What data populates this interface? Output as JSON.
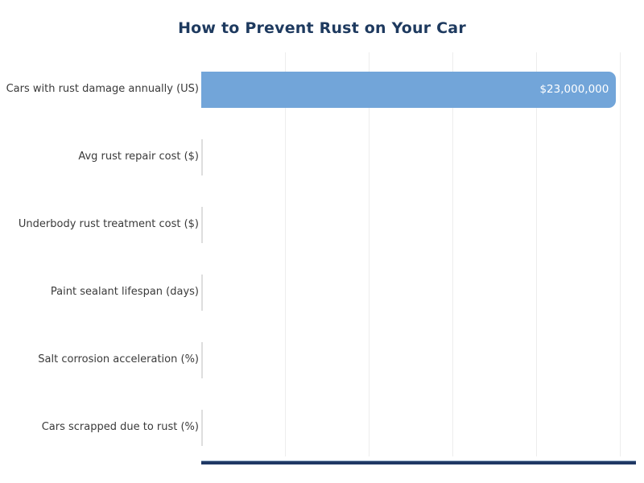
{
  "title": "How to Prevent Rust on Your Car",
  "chart_data": {
    "type": "bar",
    "orientation": "horizontal",
    "title": "How to Prevent Rust on Your Car",
    "xlabel": "",
    "ylabel": "",
    "categories": [
      "Cars with rust damage annually (US)",
      "Avg rust repair cost ($)",
      "Underbody rust treatment cost ($)",
      "Paint sealant lifespan (days)",
      "Salt corrosion acceleration (%)",
      "Cars scrapped due to rust (%)"
    ],
    "values": [
      23000000,
      null,
      null,
      null,
      null,
      null
    ],
    "value_labels": [
      "$23,000,000",
      null,
      null,
      null,
      null,
      null
    ],
    "xlim": [
      0,
      24100000
    ],
    "grid": "vertical gridlines only, 5 lines, no tick labels",
    "legend": "none",
    "note": "Only the first bar is visibly rendered; remaining bars appear as sub-pixel slivers at the axis"
  },
  "colors": {
    "background": "#ffffff",
    "bar_fill": "#72a5d9",
    "tiny_bar_sliver": "#dedede",
    "title_text": "#1e3a5f",
    "axis_line": "#1f3864",
    "gridline": "#ededed",
    "category_text": "#3a3a3a",
    "value_text": "#ffffff"
  }
}
